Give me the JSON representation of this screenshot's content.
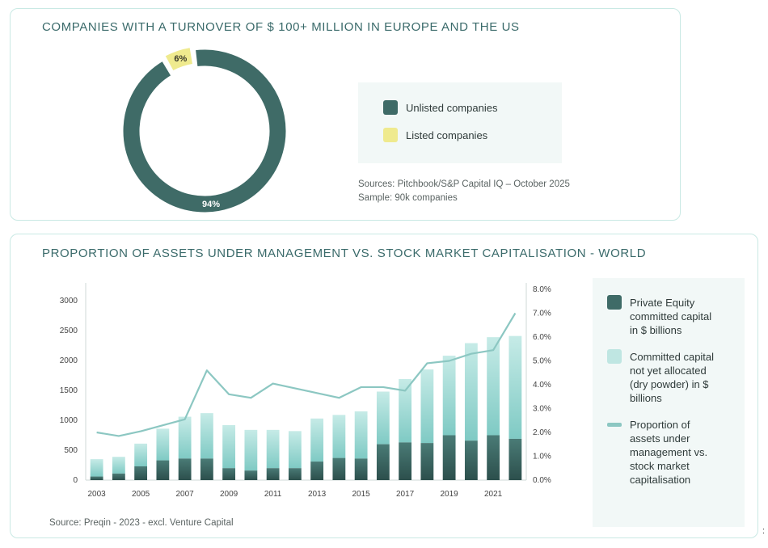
{
  "colors": {
    "dark_teal": "#3f6b67",
    "light_teal": "#9fd9d5",
    "line_teal": "#8cc7c2",
    "yellow": "#efea8e",
    "title": "#3a6a6a"
  },
  "card1": {
    "title": "COMPANIES WITH A TURNOVER OF $ 100+ MILLION IN EUROPE AND THE US",
    "legend": [
      {
        "label": "Unlisted companies",
        "color": "#3f6b67"
      },
      {
        "label": "Listed companies",
        "color": "#efea8e"
      }
    ],
    "sources": "Sources: Pitchbook/S&P Capital IQ – October 2025",
    "sample": "Sample: 90k companies"
  },
  "card2": {
    "title": "PROPORTION OF ASSETS UNDER MANAGEMENT VS. STOCK MARKET CAPITALISATION - WORLD",
    "legend": [
      {
        "label": "Private Equity committed capital in $ billions",
        "color": "#3f6b67",
        "kind": "box"
      },
      {
        "label": "Committed capital not yet allocated (dry powder) in $ billions",
        "color": "#bfe6e2",
        "kind": "box"
      },
      {
        "label": "Proportion of assets under management vs. stock market capitalisation",
        "color": "#8cc7c2",
        "kind": "line"
      }
    ],
    "source": "Source: Preqin - 2023 - excl. Venture Capital"
  },
  "edge_mark": ":",
  "chart_data": [
    {
      "type": "pie",
      "variant": "donut",
      "labels": [
        "Unlisted companies",
        "Listed companies"
      ],
      "values": [
        94,
        6
      ],
      "value_labels": [
        "94%",
        "6%"
      ],
      "colors": [
        "#3f6b67",
        "#efea8e"
      ]
    },
    {
      "type": "bar",
      "stacked": true,
      "dual_axis": true,
      "x": [
        2003,
        2004,
        2005,
        2006,
        2007,
        2008,
        2009,
        2010,
        2011,
        2012,
        2013,
        2014,
        2015,
        2016,
        2017,
        2018,
        2019,
        2020,
        2021,
        2022
      ],
      "x_tick_labels": [
        "2003",
        "2005",
        "2007",
        "2009",
        "2011",
        "2013",
        "2015",
        "2017",
        "2019",
        "2021"
      ],
      "series": [
        {
          "name": "Private Equity committed capital in $ billions",
          "axis": "left",
          "type": "bar",
          "values": [
            60,
            110,
            230,
            330,
            360,
            360,
            200,
            160,
            200,
            200,
            310,
            370,
            360,
            600,
            630,
            620,
            750,
            660,
            750,
            690
          ]
        },
        {
          "name": "Committed capital not yet allocated (dry powder) in $ billions",
          "axis": "left",
          "type": "bar",
          "values": [
            290,
            280,
            380,
            530,
            700,
            760,
            720,
            680,
            640,
            620,
            720,
            720,
            790,
            880,
            1060,
            1230,
            1330,
            1630,
            1640,
            1720
          ]
        },
        {
          "name": "Proportion of assets under management vs. stock market capitalisation",
          "axis": "right",
          "type": "line",
          "values": [
            2.0,
            1.85,
            2.05,
            2.3,
            2.55,
            4.6,
            3.6,
            3.45,
            4.05,
            3.85,
            3.65,
            3.45,
            3.9,
            3.9,
            3.75,
            4.9,
            5.0,
            5.3,
            5.45,
            7.0
          ]
        }
      ],
      "y_left": {
        "min": 0,
        "max": 3000,
        "ticks": [
          "0",
          "500",
          "1000",
          "1500",
          "2000",
          "2500",
          "3000"
        ]
      },
      "y_right": {
        "min": 0,
        "max": 8,
        "ticks": [
          "0.0%",
          "1.0%",
          "2.0%",
          "3.0%",
          "4.0%",
          "5.0%",
          "6.0%",
          "7.0%",
          "8.0%"
        ]
      },
      "legend_position": "right",
      "grid": false
    }
  ]
}
